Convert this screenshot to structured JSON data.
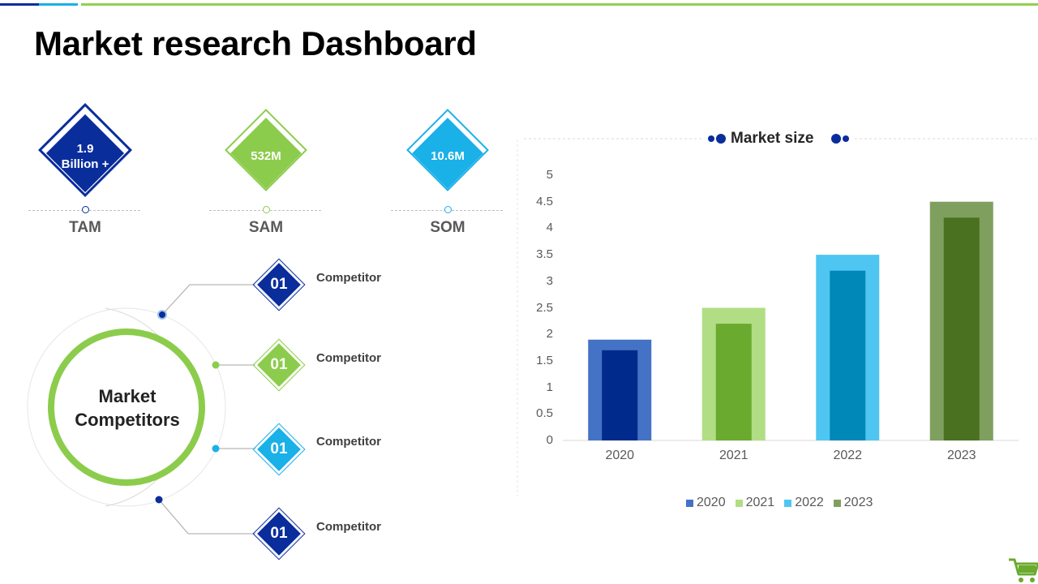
{
  "page": {
    "title": "Market research Dashboard"
  },
  "colors": {
    "navy": "#0a2d9c",
    "green": "#8ccc4c",
    "cyan": "#1ab0e8",
    "accent_line": "#92d050"
  },
  "kpis": [
    {
      "value": "1.9 Billion +",
      "label": "TAM",
      "color": "#0a2d9c"
    },
    {
      "value": "532M",
      "label": "SAM",
      "color": "#8ccc4c"
    },
    {
      "value": "10.6M",
      "label": "SOM",
      "color": "#1ab0e8"
    }
  ],
  "competitors": {
    "center_line1": "Market",
    "center_line2": "Competitors",
    "items": [
      {
        "number": "01",
        "label": "Competitor",
        "color": "#0a2d9c"
      },
      {
        "number": "01",
        "label": "Competitor",
        "color": "#8ccc4c"
      },
      {
        "number": "01",
        "label": "Competitor",
        "color": "#1ab0e8"
      },
      {
        "number": "01",
        "label": "Competitor",
        "color": "#0a2d9c"
      }
    ]
  },
  "chart_data": {
    "type": "bar",
    "title": "Market size",
    "categories": [
      "2020",
      "2021",
      "2022",
      "2023"
    ],
    "values": [
      1.9,
      2.5,
      3.5,
      4.5
    ],
    "inner_values": [
      1.7,
      2.2,
      3.2,
      4.2
    ],
    "ylim": [
      0,
      5
    ],
    "yticks": [
      "0",
      "0.5",
      "1",
      "1.5",
      "2",
      "2.5",
      "3",
      "3.5",
      "4",
      "4.5",
      "5"
    ],
    "legend": [
      "2020",
      "2021",
      "2022",
      "2023"
    ],
    "outer_colors": [
      "#4472c4",
      "#b1de84",
      "#4fc6f1",
      "#7f9f5f"
    ],
    "inner_colors": [
      "#002a8c",
      "#6aaa2e",
      "#0088b8",
      "#4a711f"
    ],
    "legend_position": "bottom"
  }
}
